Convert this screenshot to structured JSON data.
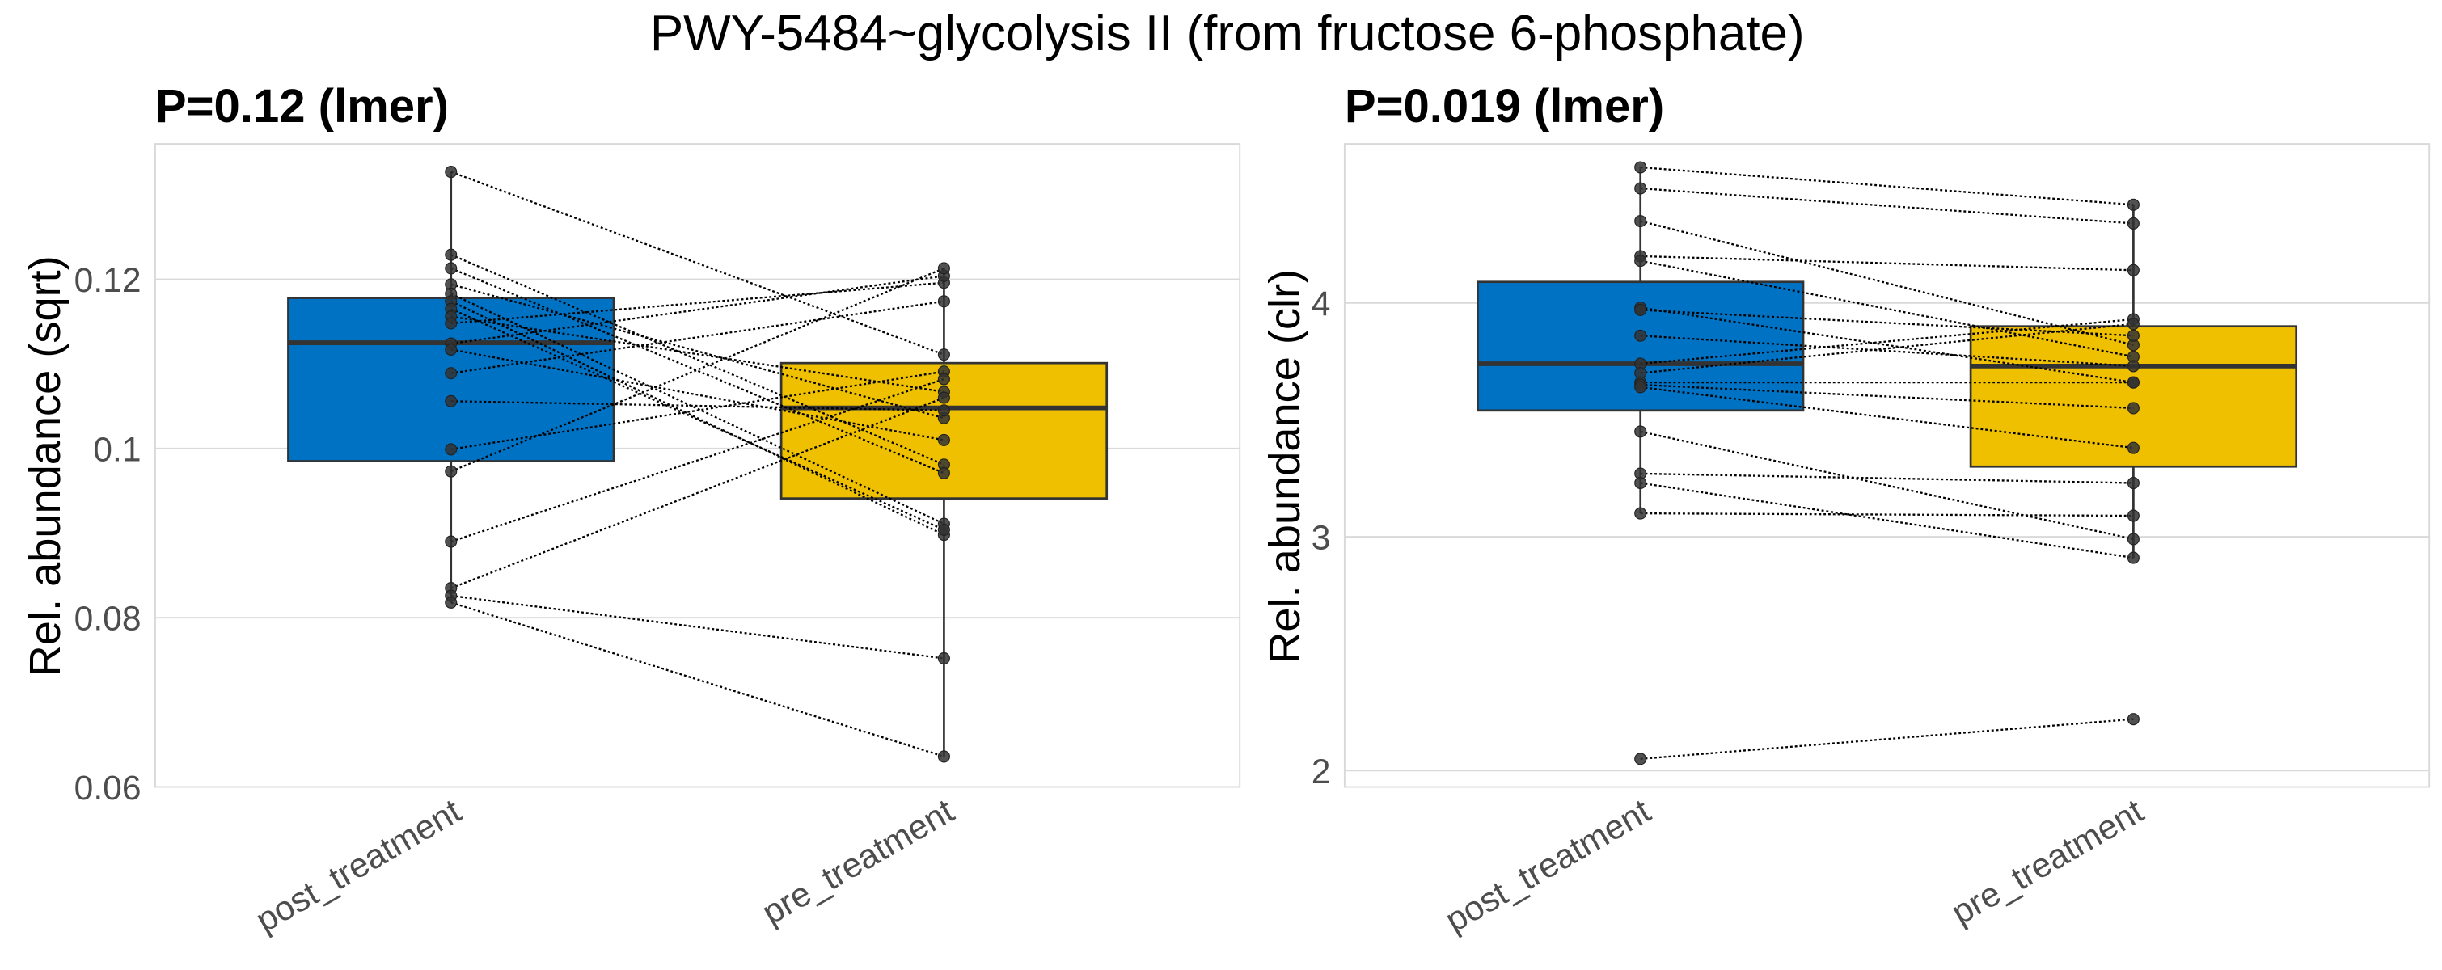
{
  "chart_data": {
    "type": "box",
    "title": "PWY-5484~glycolysis II (from fructose 6-phosphate)",
    "colors": {
      "post_treatment": "#0072C3",
      "pre_treatment": "#EFC000",
      "points": "#333333",
      "grid": "#d9d9d9"
    },
    "panels": [
      {
        "id": "sqrt",
        "title": "P=0.12 (lmer)",
        "ylabel": "Rel. abundance (sqrt)",
        "categories": [
          "post_treatment",
          "pre_treatment"
        ],
        "ylim": [
          0.06,
          0.136
        ],
        "yticks": [
          0.06,
          0.08,
          0.1,
          0.12
        ],
        "ytick_labels": [
          "0.06",
          "0.08",
          "0.1",
          "0.12"
        ],
        "boxes": [
          {
            "category": "post_treatment",
            "q1": 0.0985,
            "median": 0.1125,
            "q3": 0.1178,
            "whisker_low": 0.0818,
            "whisker_high": 0.1327
          },
          {
            "category": "pre_treatment",
            "q1": 0.0941,
            "median": 0.1048,
            "q3": 0.1101,
            "whisker_low": 0.0636,
            "whisker_high": 0.1213
          }
        ],
        "pairs": [
          [
            0.1327,
            0.1111
          ],
          [
            0.1229,
            0.0981
          ],
          [
            0.1213,
            0.0971
          ],
          [
            0.1194,
            0.1036
          ],
          [
            0.1183,
            0.0911
          ],
          [
            0.1174,
            0.0898
          ],
          [
            0.1165,
            0.0904
          ],
          [
            0.1156,
            0.1067
          ],
          [
            0.1148,
            0.1196
          ],
          [
            0.1124,
            0.1204
          ],
          [
            0.1117,
            0.101
          ],
          [
            0.1089,
            0.1174
          ],
          [
            0.1056,
            0.1045
          ],
          [
            0.0999,
            0.1091
          ],
          [
            0.0973,
            0.1213
          ],
          [
            0.089,
            0.1082
          ],
          [
            0.0835,
            0.106
          ],
          [
            0.0826,
            0.0752
          ],
          [
            0.0818,
            0.0636
          ]
        ]
      },
      {
        "id": "clr",
        "title": "P=0.019 (lmer)",
        "ylabel": "Rel. abundance (clr)",
        "categories": [
          "post_treatment",
          "pre_treatment"
        ],
        "ylim": [
          1.93,
          4.68
        ],
        "yticks": [
          2,
          3,
          4
        ],
        "ytick_labels": [
          "2",
          "3",
          "4"
        ],
        "boxes": [
          {
            "category": "post_treatment",
            "q1": 3.54,
            "median": 3.74,
            "q3": 4.09,
            "whisker_low": 3.1,
            "whisker_high": 4.58
          },
          {
            "category": "pre_treatment",
            "q1": 3.3,
            "median": 3.73,
            "q3": 3.9,
            "whisker_low": 2.91,
            "whisker_high": 4.42
          }
        ],
        "pairs": [
          [
            4.58,
            4.42
          ],
          [
            4.49,
            4.34
          ],
          [
            4.35,
            3.82
          ],
          [
            4.2,
            4.14
          ],
          [
            4.18,
            3.77
          ],
          [
            3.98,
            3.66
          ],
          [
            3.97,
            3.86
          ],
          [
            3.86,
            3.73
          ],
          [
            3.74,
            3.93
          ],
          [
            3.7,
            3.91
          ],
          [
            3.66,
            3.66
          ],
          [
            3.65,
            3.55
          ],
          [
            3.64,
            3.38
          ],
          [
            3.45,
            2.99
          ],
          [
            3.27,
            3.23
          ],
          [
            3.23,
            2.91
          ],
          [
            3.1,
            3.09
          ],
          [
            2.05,
            2.22
          ]
        ]
      }
    ]
  }
}
